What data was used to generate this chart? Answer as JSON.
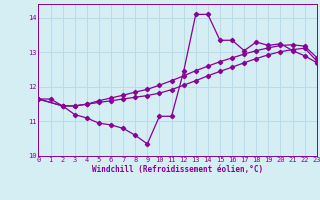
{
  "xlabel": "Windchill (Refroidissement éolien,°C)",
  "xlim": [
    0,
    23
  ],
  "ylim": [
    10,
    14.4
  ],
  "yticks": [
    10,
    11,
    12,
    13,
    14
  ],
  "xticks": [
    0,
    1,
    2,
    3,
    4,
    5,
    6,
    7,
    8,
    9,
    10,
    11,
    12,
    13,
    14,
    15,
    16,
    17,
    18,
    19,
    20,
    21,
    22,
    23
  ],
  "bg_color": "#d4eef4",
  "line_color": "#880099",
  "grid_color": "#b8dde8",
  "line1_x": [
    0,
    1,
    2,
    3,
    4,
    5,
    6,
    7,
    8,
    9,
    10,
    11,
    12,
    13,
    14,
    15,
    16,
    17,
    18,
    19,
    20,
    21,
    22,
    23
  ],
  "line1_y": [
    11.65,
    11.65,
    11.45,
    11.2,
    11.1,
    10.95,
    10.9,
    10.8,
    10.6,
    10.35,
    11.15,
    11.15,
    12.45,
    14.1,
    14.1,
    13.35,
    13.35,
    13.05,
    13.3,
    13.2,
    13.25,
    13.05,
    12.9,
    12.7
  ],
  "line2_x": [
    0,
    2,
    3,
    4,
    5,
    6,
    7,
    8,
    9,
    10,
    11,
    12,
    13,
    14,
    15,
    16,
    17,
    18,
    19,
    20,
    21,
    22,
    23
  ],
  "line2_y": [
    11.65,
    11.45,
    11.45,
    11.5,
    11.55,
    11.6,
    11.65,
    11.7,
    11.75,
    11.82,
    11.92,
    12.05,
    12.18,
    12.32,
    12.45,
    12.57,
    12.7,
    12.82,
    12.93,
    13.02,
    13.08,
    13.12,
    12.75
  ],
  "line3_x": [
    0,
    2,
    3,
    4,
    5,
    6,
    7,
    8,
    9,
    10,
    11,
    12,
    13,
    14,
    15,
    16,
    17,
    18,
    19,
    20,
    21,
    22,
    23
  ],
  "line3_y": [
    11.65,
    11.45,
    11.45,
    11.5,
    11.6,
    11.68,
    11.76,
    11.85,
    11.93,
    12.05,
    12.18,
    12.32,
    12.47,
    12.6,
    12.73,
    12.84,
    12.95,
    13.05,
    13.13,
    13.2,
    13.22,
    13.18,
    12.85
  ]
}
